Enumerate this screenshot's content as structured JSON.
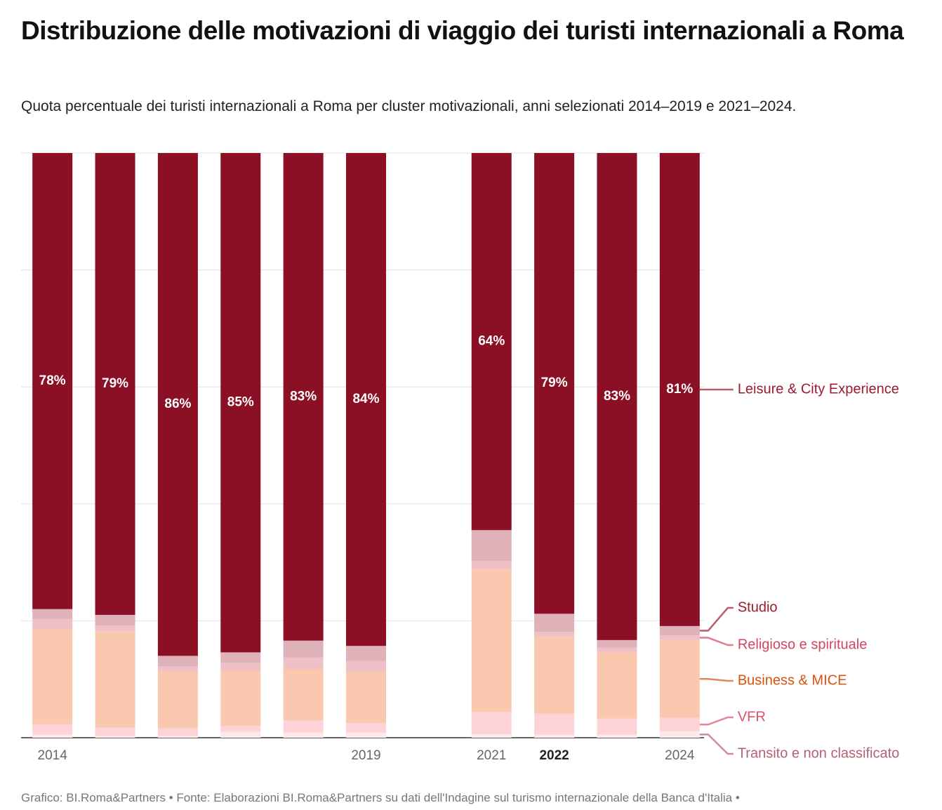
{
  "chart_data": {
    "type": "stacked_bar",
    "title": "Distribuzione delle motivazioni di viaggio dei turisti internazionali a Roma",
    "subtitle": "Quota percentuale dei turisti internazionali a Roma per cluster motivazionali, anni selezionati 2014–2019 e 2021–2024.",
    "source": "Grafico: BI.Roma&Partners • Fonte: Elaborazioni BI.Roma&Partners su dati dell'Indagine sul turismo internazionale della Banca d'Italia •",
    "categories": [
      "2014",
      null,
      null,
      null,
      null,
      "2019",
      null,
      "2021",
      "2022",
      null,
      "2024"
    ],
    "bold_categories": [
      8
    ],
    "ylim": [
      0,
      100
    ],
    "yticks": [
      0,
      20,
      40,
      60,
      80,
      100
    ],
    "grid": true,
    "series": [
      {
        "name": "Transito e non classificato",
        "color": "#fde9ea",
        "label_color": "#b5606f",
        "values": [
          0.5,
          0.3,
          0.3,
          1.0,
          0.9,
          0.9,
          null,
          0.6,
          0.5,
          0.5,
          1.1
        ]
      },
      {
        "name": "VFR",
        "color": "#fdd3d7",
        "label_color": "#e0506a",
        "values": [
          1.8,
          1.4,
          1.3,
          1.0,
          2.0,
          1.6,
          null,
          3.8,
          3.6,
          2.8,
          2.3
        ]
      },
      {
        "name": "Business & MICE",
        "color": "#f9c8ae",
        "label_color": "#d9530f",
        "values": [
          16.3,
          16.5,
          9.8,
          9.4,
          8.8,
          8.8,
          null,
          24.4,
          13.2,
          11.3,
          13.3
        ]
      },
      {
        "name": "Religioso e spirituale",
        "color": "#efc0c6",
        "label_color": "#d2465e",
        "values": [
          1.7,
          1.0,
          0.8,
          1.4,
          2.0,
          1.8,
          null,
          1.4,
          0.8,
          0.8,
          0.8
        ]
      },
      {
        "name": "Studio",
        "color": "#dfb1b9",
        "label_color": "#9b1b30",
        "values": [
          1.7,
          1.8,
          1.8,
          1.8,
          2.9,
          2.6,
          null,
          5.3,
          3.1,
          1.3,
          1.6
        ]
      },
      {
        "name": "Leisure & City Experience",
        "color": "#8b1026",
        "label_color": "#9b1b30",
        "values": [
          78,
          79,
          86,
          85.4,
          83.4,
          84.3,
          null,
          64.5,
          78.8,
          83.3,
          80.9
        ],
        "value_labels": [
          "78%",
          "79%",
          "86%",
          "85%",
          "83%",
          "84%",
          null,
          "64%",
          "79%",
          "83%",
          "81%"
        ]
      }
    ]
  }
}
